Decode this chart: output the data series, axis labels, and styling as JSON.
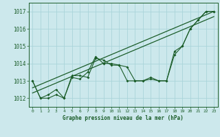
{
  "title": "Graphe pression niveau de la mer (hPa)",
  "bg_color": "#cce8ec",
  "grid_color": "#aad4da",
  "line_color": "#1a5c28",
  "xlim": [
    -0.5,
    23.5
  ],
  "ylim": [
    1011.5,
    1017.5
  ],
  "yticks": [
    1012,
    1013,
    1014,
    1015,
    1016,
    1017
  ],
  "xtick_labels": [
    "0",
    "1",
    "2",
    "3",
    "4",
    "5",
    "6",
    "7",
    "8",
    "9",
    "10",
    "11",
    "12",
    "13",
    "14",
    "15",
    "16",
    "17",
    "18",
    "19",
    "20",
    "21",
    "22",
    "23"
  ],
  "series1_x": [
    0,
    1,
    2,
    3,
    4,
    5,
    6,
    7,
    8,
    9,
    10,
    11,
    12,
    13,
    14,
    15,
    16,
    17,
    18,
    19,
    20,
    21,
    22,
    23
  ],
  "series1_y": [
    1013.0,
    1012.0,
    1012.0,
    1012.2,
    1012.0,
    1013.2,
    1013.1,
    1013.5,
    1014.4,
    1014.0,
    1014.0,
    1013.9,
    1013.0,
    1013.0,
    1013.0,
    1013.2,
    1013.0,
    1013.0,
    1014.5,
    1015.0,
    1016.0,
    1016.5,
    1017.0,
    1017.0
  ],
  "series2_x": [
    0,
    1,
    2,
    3,
    4,
    5,
    6,
    7,
    8,
    9,
    10,
    11,
    12,
    13,
    14,
    15,
    16,
    17,
    18,
    19,
    20,
    21,
    22,
    23
  ],
  "series2_y": [
    1013.0,
    1012.0,
    1012.2,
    1012.5,
    1012.0,
    1013.3,
    1013.3,
    1013.2,
    1014.3,
    1014.2,
    1013.9,
    1013.9,
    1013.8,
    1013.0,
    1013.0,
    1013.1,
    1013.0,
    1013.0,
    1014.7,
    1015.0,
    1016.0,
    1016.5,
    1017.0,
    1017.0
  ],
  "trend1_x": [
    0,
    23
  ],
  "trend1_y": [
    1012.3,
    1016.7
  ],
  "trend2_x": [
    0,
    23
  ],
  "trend2_y": [
    1012.6,
    1017.0
  ]
}
